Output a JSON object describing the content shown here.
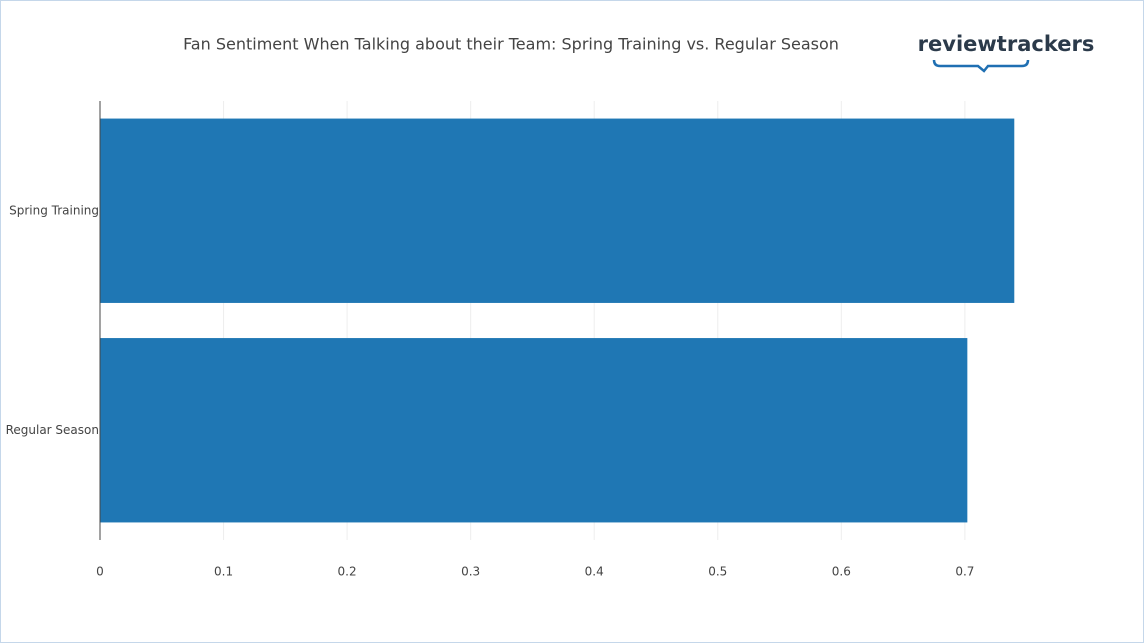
{
  "chart_data": {
    "type": "bar",
    "orientation": "horizontal",
    "title": "Fan Sentiment When Talking about their Team: Spring Training vs. Regular Season",
    "logo": "reviewtrackers",
    "categories": [
      "Spring Training",
      "Regular Season"
    ],
    "values": [
      0.74,
      0.702
    ],
    "color": "#1f77b4",
    "xlim": [
      0,
      0.76
    ],
    "xticks": [
      0,
      0.1,
      0.2,
      0.3,
      0.4,
      0.5,
      0.6,
      0.7
    ],
    "grid": true
  }
}
